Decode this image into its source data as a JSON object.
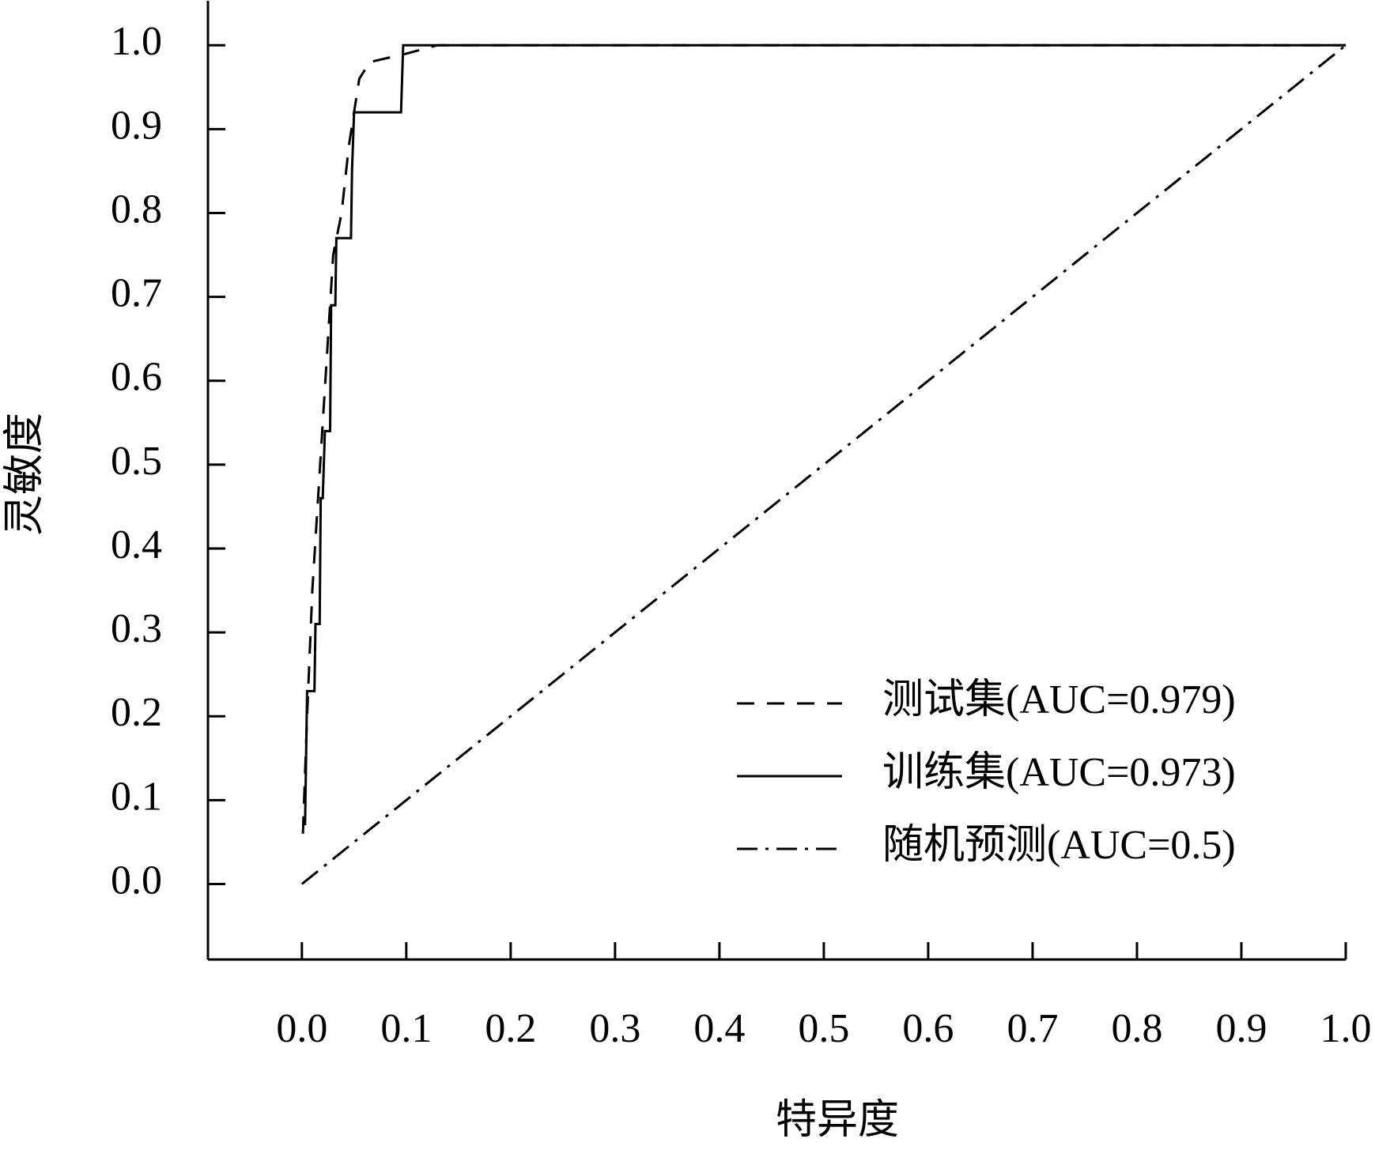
{
  "chart_data": {
    "type": "line",
    "x_label": "特异度",
    "y_label": "灵敏度",
    "xlim": [
      -0.09,
      1.0
    ],
    "ylim": [
      -0.09,
      1.053
    ],
    "xticks": [
      {
        "value": 0,
        "label": "0.0"
      },
      0.1,
      0.2,
      0.3,
      0.4,
      0.5,
      0.6,
      0.7,
      0.8,
      0.9,
      {
        "value": 1,
        "label": "1.0"
      }
    ],
    "yticks": [
      {
        "value": 0,
        "label": "0.0"
      },
      0.1,
      0.2,
      0.3,
      0.4,
      0.5,
      0.6,
      0.7,
      0.8,
      0.9,
      {
        "value": 1,
        "label": "1.0"
      }
    ],
    "grid": false,
    "legend": "lower right",
    "series": [
      {
        "name": "测试集(AUC=0.979)",
        "color": "#000000",
        "dash": "dashed",
        "x": [
          0.001,
          0.005,
          0.01,
          0.015,
          0.02,
          0.025,
          0.03,
          0.038,
          0.045,
          0.05,
          0.055,
          0.065,
          0.1,
          0.13,
          1.0
        ],
        "values": [
          0.06,
          0.2,
          0.35,
          0.45,
          0.55,
          0.65,
          0.75,
          0.8,
          0.88,
          0.92,
          0.96,
          0.98,
          0.99,
          1.0,
          1.0
        ]
      },
      {
        "name": "训练集(AUC=0.973)",
        "color": "#000000",
        "dash": "solid",
        "x": [
          0.003,
          0.005,
          0.012,
          0.013,
          0.017,
          0.018,
          0.02,
          0.022,
          0.027,
          0.028,
          0.032,
          0.033,
          0.047,
          0.048,
          0.05,
          0.095,
          0.097,
          1.0
        ],
        "values": [
          0.07,
          0.23,
          0.23,
          0.31,
          0.31,
          0.46,
          0.46,
          0.54,
          0.54,
          0.69,
          0.69,
          0.77,
          0.77,
          0.85,
          0.92,
          0.92,
          1.0,
          1.0
        ]
      },
      {
        "name": "随机预测(AUC=0.5)",
        "color": "#000000",
        "dash": "dashdot",
        "x": [
          0,
          1
        ],
        "values": [
          0,
          1
        ]
      }
    ]
  }
}
